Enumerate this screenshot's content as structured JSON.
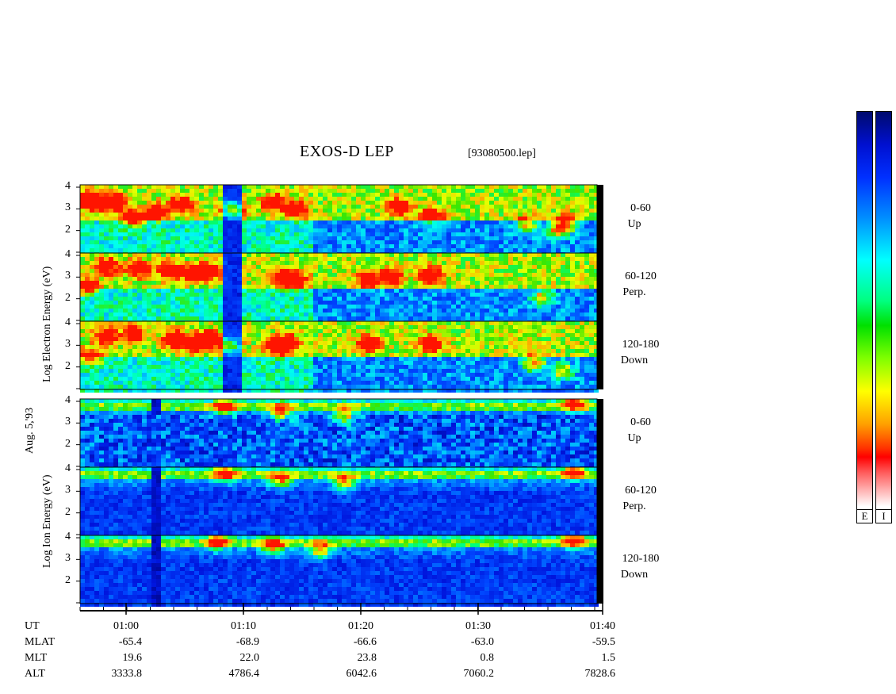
{
  "title": "EXOS-D LEP",
  "file_label": "[93080500.lep]",
  "date_label": "Aug. 5,'93",
  "electron_axis_label": "Log   Electron   Energy (eV)",
  "ion_axis_label": "Log   Ion   Energy (eV)",
  "colorbar": {
    "labels": [
      "E",
      "I"
    ]
  },
  "chart_data": {
    "type": "heatmap",
    "title": "EXOS-D LEP",
    "x_axis": {
      "label": "UT",
      "range": [
        "00:55",
        "01:40"
      ],
      "ticks": [
        "01:00",
        "01:10",
        "01:20",
        "01:30",
        "01:40"
      ]
    },
    "y_axis": {
      "label": "Log Energy (eV)",
      "range": [
        1,
        4
      ],
      "ticks": [
        "2",
        "3",
        "4"
      ]
    },
    "panels": [
      {
        "species": "Electron",
        "pitch": "0-60",
        "direction": "Up",
        "features": {
          "gap": [
            55,
            75
          ],
          "blobs": [
            [
              8,
              3.4
            ],
            [
              23,
              3.3
            ],
            [
              40,
              3.3
            ],
            [
              62,
              2.6
            ],
            [
              93,
              2.9
            ],
            [
              125,
              3.2
            ],
            [
              190,
              3.0
            ],
            [
              240,
              3.3
            ],
            [
              270,
              3.0
            ],
            [
              400,
              3.1
            ],
            [
              440,
              2.7
            ],
            [
              560,
              2.3
            ],
            [
              600,
              2.1
            ],
            [
              610,
              2.4
            ]
          ]
        }
      },
      {
        "species": "Electron",
        "pitch": "60-120",
        "direction": "Perp.",
        "features": {
          "gap": [
            55,
            75
          ],
          "blobs": [
            [
              5,
              2.6
            ],
            [
              30,
              3.5
            ],
            [
              70,
              3.4
            ],
            [
              110,
              3.3
            ],
            [
              140,
              3.2
            ],
            [
              160,
              3.3
            ],
            [
              250,
              3.0
            ],
            [
              270,
              2.9
            ],
            [
              360,
              2.9
            ],
            [
              390,
              3.0
            ],
            [
              440,
              3.1
            ],
            [
              580,
              2.1
            ]
          ]
        }
      },
      {
        "species": "Electron",
        "pitch": "120-180",
        "direction": "Down",
        "features": {
          "gap": [
            55,
            75
          ],
          "blobs": [
            [
              10,
              2.5
            ],
            [
              30,
              3.4
            ],
            [
              65,
              3.5
            ],
            [
              115,
              3.3
            ],
            [
              140,
              3.1
            ],
            [
              160,
              3.3
            ],
            [
              185,
              3.0
            ],
            [
              245,
              3.0
            ],
            [
              260,
              3.1
            ],
            [
              360,
              3.1
            ],
            [
              440,
              3.1
            ],
            [
              570,
              2.2
            ],
            [
              605,
              1.9
            ]
          ]
        }
      },
      {
        "species": "Ion",
        "pitch": "0-60",
        "direction": "Up",
        "features": {
          "gap": [
            85,
            100
          ],
          "blobs": [
            [
              180,
              3.7
            ],
            [
              250,
              3.5
            ],
            [
              330,
              3.3
            ],
            [
              620,
              3.9
            ]
          ]
        }
      },
      {
        "species": "Ion",
        "pitch": "60-120",
        "direction": "Perp.",
        "features": {
          "gap": [
            85,
            100
          ],
          "blobs": [
            [
              180,
              3.8
            ],
            [
              250,
              3.5
            ],
            [
              330,
              3.4
            ],
            [
              620,
              3.9
            ]
          ]
        }
      },
      {
        "species": "Ion",
        "pitch": "120-180",
        "direction": "Down",
        "features": {
          "gap": [
            85,
            100
          ],
          "blobs": [
            [
              170,
              3.8
            ],
            [
              240,
              3.6
            ],
            [
              300,
              3.4
            ],
            [
              620,
              3.9
            ]
          ]
        }
      }
    ],
    "ephemeris": {
      "rows": [
        {
          "label": "UT",
          "values": [
            "01:00",
            "01:10",
            "01:20",
            "01:30",
            "01:40"
          ]
        },
        {
          "label": "MLAT",
          "values": [
            "-65.4",
            "-68.9",
            "-66.6",
            "-63.0",
            "-59.5"
          ]
        },
        {
          "label": "MLT",
          "values": [
            "19.6",
            "22.0",
            "23.8",
            "0.8",
            "1.5"
          ]
        },
        {
          "label": "ALT",
          "values": [
            "3333.8",
            "4786.4",
            "6042.6",
            "7060.2",
            "7828.6"
          ]
        }
      ]
    },
    "colorbar_labels": [
      "E",
      "I"
    ]
  }
}
